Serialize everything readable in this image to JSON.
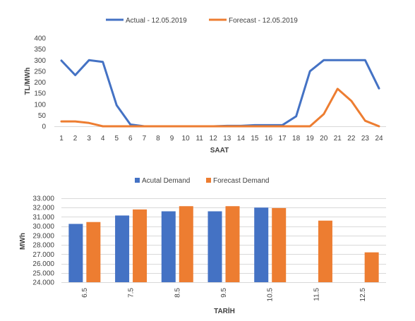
{
  "chart_data": [
    {
      "type": "line",
      "xlabel": "SAAT",
      "ylabel": "TL/MWh",
      "ylim": [
        0,
        400
      ],
      "yticks": [
        "0",
        "50",
        "100",
        "150",
        "200",
        "250",
        "300",
        "350",
        "400"
      ],
      "x": [
        "1",
        "2",
        "3",
        "4",
        "5",
        "6",
        "7",
        "8",
        "9",
        "10",
        "11",
        "12",
        "13",
        "14",
        "15",
        "16",
        "17",
        "18",
        "19",
        "20",
        "21",
        "22",
        "23",
        "24"
      ],
      "legend_position": "top",
      "grid": false,
      "series": [
        {
          "name": "Actual - 12.05.2019",
          "color": "#4472C4",
          "values": [
            298,
            232,
            300,
            292,
            95,
            8,
            0,
            0,
            0,
            0,
            0,
            0,
            2,
            2,
            5,
            5,
            5,
            45,
            250,
            300,
            300,
            300,
            300,
            172
          ]
        },
        {
          "name": "Forecast - 12.05.2019",
          "color": "#ED7D31",
          "values": [
            22,
            22,
            15,
            0,
            0,
            0,
            0,
            0,
            0,
            0,
            0,
            0,
            0,
            0,
            0,
            0,
            0,
            0,
            0,
            55,
            170,
            115,
            25,
            0
          ]
        }
      ]
    },
    {
      "type": "bar",
      "xlabel": "TARİH",
      "ylabel": "MWh",
      "ylim": [
        24000,
        33000
      ],
      "yticks": [
        "24.000",
        "25.000",
        "26.000",
        "27.000",
        "28.000",
        "29.000",
        "30.000",
        "31.000",
        "32.000",
        "33.000"
      ],
      "categories": [
        "6.5",
        "7.5",
        "8.5",
        "9.5",
        "10.5",
        "11.5",
        "12.5"
      ],
      "legend_position": "top",
      "grid": true,
      "series": [
        {
          "name": "Acutal Demand",
          "color": "#4472C4",
          "values": [
            30250,
            31150,
            31600,
            31600,
            32000,
            null,
            null
          ]
        },
        {
          "name": "Forecast Demand",
          "color": "#ED7D31",
          "values": [
            30450,
            31800,
            32150,
            32150,
            31950,
            30600,
            27200
          ]
        }
      ]
    }
  ]
}
